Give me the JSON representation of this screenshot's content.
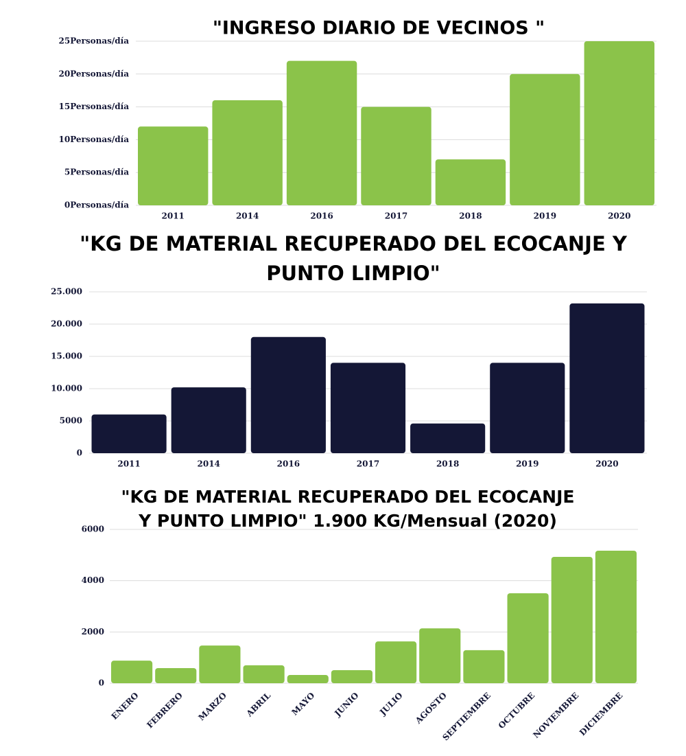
{
  "chart_data": [
    {
      "type": "bar",
      "title": [
        "\"INGRESO DIARIO DE VECINOS \""
      ],
      "categories": [
        "2011",
        "2014",
        "2016",
        "2017",
        "2018",
        "2019",
        "2020"
      ],
      "values": [
        12,
        16,
        22,
        15,
        7,
        20,
        25
      ],
      "color": "#8bc34a",
      "ylim": [
        0,
        25
      ],
      "yticks": [
        {
          "value": 0,
          "label": "0Personas/día"
        },
        {
          "value": 5,
          "label": "5Personas/día"
        },
        {
          "value": 10,
          "label": "10Personas/día"
        },
        {
          "value": 15,
          "label": "15Personas/día"
        },
        {
          "value": 20,
          "label": "20Personas/día"
        },
        {
          "value": 25,
          "label": "25Personas/día"
        }
      ],
      "grid": true
    },
    {
      "type": "bar",
      "title": [
        "\"KG DE MATERIAL RECUPERADO DEL ECOCANJE Y",
        "PUNTO LIMPIO\""
      ],
      "categories": [
        "2011",
        "2014",
        "2016",
        "2017",
        "2018",
        "2019",
        "2020"
      ],
      "values": [
        6000,
        10200,
        18000,
        14000,
        4600,
        14000,
        23200
      ],
      "color": "#141736",
      "ylim": [
        0,
        25000
      ],
      "yticks": [
        0,
        5000,
        {
          "value": 10000,
          "label": "10.000"
        },
        {
          "value": 15000,
          "label": "15.000"
        },
        {
          "value": 20000,
          "label": "20.000"
        },
        {
          "value": 25000,
          "label": "25.000"
        }
      ],
      "grid": true
    },
    {
      "type": "bar",
      "title": [
        "\"KG DE MATERIAL RECUPERADO DEL ECOCANJE",
        "Y PUNTO LIMPIO\" 1.900 KG/Mensual (2020)"
      ],
      "categories": [
        "ENERO",
        "FEBRERO",
        "MARZO",
        "ABRIL",
        "MAYO",
        "JUNIO",
        "JULIO",
        "AGOSTO",
        "SEPTIEMBRE",
        "OCTUBRE",
        "NOVIEMBRE",
        "DICIEMBRE"
      ],
      "values": [
        880,
        590,
        1470,
        700,
        320,
        510,
        1630,
        2140,
        1290,
        3510,
        4930,
        5170
      ],
      "color": "#8bc34a",
      "ylim": [
        0,
        6000
      ],
      "yticks": [
        0,
        2000,
        4000,
        6000
      ],
      "grid": true
    }
  ]
}
